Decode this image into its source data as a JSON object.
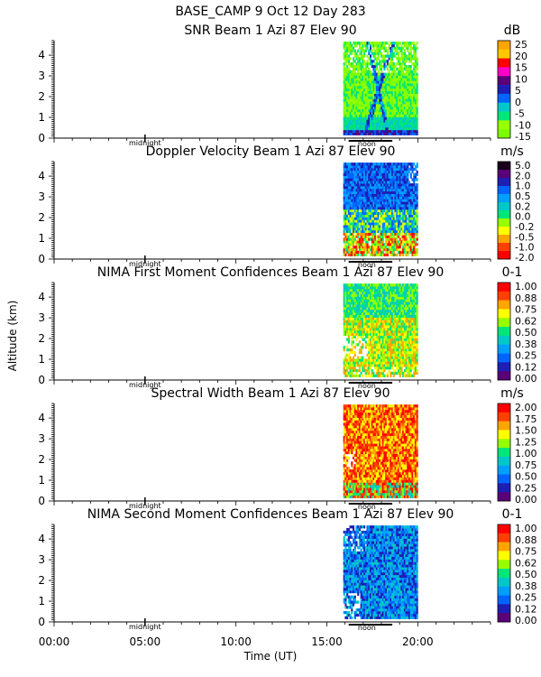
{
  "figure": {
    "header": "BASE_CAMP   9 Oct 12 Day 283",
    "ylabel": "Altitude (km)",
    "xlabel": "Time (UT)",
    "x_ticks": [
      "00:00",
      "05:00",
      "10:00",
      "15:00",
      "20:00"
    ],
    "midnight_label": "midnight",
    "noon_label": "noon"
  },
  "chart_data": [
    {
      "type": "heatmap",
      "title": "SNR Beam 1 Azi  87 Elev 90",
      "unit": "dB",
      "ylabel": "Altitude (km)",
      "xlabel": "Time (UT)",
      "x_range_hours": [
        0,
        24
      ],
      "data_x_range_hours": [
        15.9,
        20.0
      ],
      "ylim": [
        0,
        4.7
      ],
      "y_ticks": [
        0,
        1,
        2,
        3,
        4
      ],
      "colorbar_labels": [
        "25",
        "20",
        "15",
        "10",
        "5",
        "0",
        "-5",
        "-10",
        "-15"
      ],
      "colorbar_colors": [
        "#ffa500",
        "#ffc800",
        "#ff0000",
        "#ff00c8",
        "#5a0078",
        "#1e1eb4",
        "#0064ff",
        "#00c8c8",
        "#00e678",
        "#96ff00",
        "#7cfc00"
      ]
    },
    {
      "type": "heatmap",
      "title": "Doppler Velocity Beam 1 Azi  87 Elev 90",
      "unit": "m/s",
      "x_range_hours": [
        0,
        24
      ],
      "data_x_range_hours": [
        15.9,
        20.0
      ],
      "ylim": [
        0,
        4.7
      ],
      "y_ticks": [
        0,
        1,
        2,
        3,
        4
      ],
      "colorbar_labels": [
        "5.0",
        "2.0",
        "1.0",
        "0.5",
        "0.2",
        "0.0",
        "-0.2",
        "-0.5",
        "-1.0",
        "-2.0"
      ],
      "colorbar_colors": [
        "#1a001a",
        "#5a0078",
        "#1e1eb4",
        "#0064ff",
        "#00a0ff",
        "#00c8c8",
        "#00e678",
        "#96ff00",
        "#ffff00",
        "#ffa500",
        "#ff4000",
        "#ff0000"
      ]
    },
    {
      "type": "heatmap",
      "title": "NIMA First Moment Confidences Beam 1 Azi  87 Elev 90",
      "unit": "0-1",
      "x_range_hours": [
        0,
        24
      ],
      "data_x_range_hours": [
        15.9,
        20.0
      ],
      "ylim": [
        0,
        4.7
      ],
      "y_ticks": [
        0,
        1,
        2,
        3,
        4
      ],
      "colorbar_labels": [
        "1.00",
        "0.88",
        "0.75",
        "0.62",
        "0.50",
        "0.38",
        "0.25",
        "0.12",
        "0.00"
      ],
      "colorbar_colors": [
        "#ff0000",
        "#ff4000",
        "#ffa500",
        "#ffff00",
        "#96ff00",
        "#00e678",
        "#00c8c8",
        "#00a0ff",
        "#0064ff",
        "#1e1eb4",
        "#5a0078"
      ]
    },
    {
      "type": "heatmap",
      "title": "Spectral Width Beam 1 Azi  87 Elev 90",
      "unit": "m/s",
      "x_range_hours": [
        0,
        24
      ],
      "data_x_range_hours": [
        15.9,
        20.0
      ],
      "ylim": [
        0,
        4.7
      ],
      "y_ticks": [
        0,
        1,
        2,
        3,
        4
      ],
      "colorbar_labels": [
        "2.00",
        "1.75",
        "1.50",
        "1.25",
        "1.00",
        "0.75",
        "0.50",
        "0.25",
        "0.00"
      ],
      "colorbar_colors": [
        "#ff0000",
        "#ff4000",
        "#ffa500",
        "#ffff00",
        "#96ff00",
        "#00e678",
        "#00c8c8",
        "#00a0ff",
        "#0064ff",
        "#1e1eb4",
        "#5a0078"
      ]
    },
    {
      "type": "heatmap",
      "title": "NIMA Second Moment Confidences Beam 1 Azi  87 Elev 90",
      "unit": "0-1",
      "x_range_hours": [
        0,
        24
      ],
      "data_x_range_hours": [
        15.9,
        20.0
      ],
      "ylim": [
        0,
        4.7
      ],
      "y_ticks": [
        0,
        1,
        2,
        3,
        4
      ],
      "colorbar_labels": [
        "1.00",
        "0.88",
        "0.75",
        "0.62",
        "0.50",
        "0.38",
        "0.25",
        "0.12",
        "0.00"
      ],
      "colorbar_colors": [
        "#ff0000",
        "#ff4000",
        "#ffa500",
        "#ffff00",
        "#96ff00",
        "#00e678",
        "#00c8c8",
        "#00a0ff",
        "#0064ff",
        "#1e1eb4",
        "#5a0078"
      ]
    }
  ]
}
